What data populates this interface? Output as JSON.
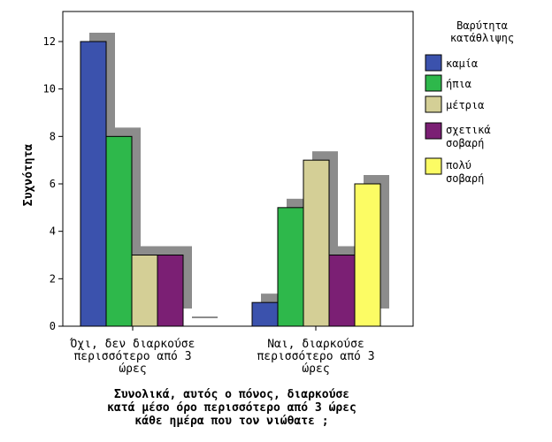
{
  "chart_data": {
    "type": "bar",
    "title": "",
    "ylabel": "Συχνότητα",
    "xlabel": [
      "Συνολικά, αυτός ο πόνος, διαρκούσε",
      "κατά μέσο όρο περισσότερο από 3 ώρες",
      "κάθε ημέρα που τον νιώθατε ;"
    ],
    "ylim": [
      0,
      12.5
    ],
    "yticks": [
      0,
      2,
      4,
      6,
      8,
      10,
      12
    ],
    "categories": [
      [
        "Όχι, δεν διαρκούσε",
        "περισσότερο από 3",
        "ώρες"
      ],
      [
        "Ναι, διαρκούσε",
        "περισσότερο από 3",
        "ώρες"
      ]
    ],
    "legend_title": [
      "Βαρύτητα",
      "κατάθλιψης"
    ],
    "legend_position": "right",
    "grid": false,
    "series": [
      {
        "name": [
          "καμία"
        ],
        "color": "#3b52ad",
        "values": [
          12,
          1
        ]
      },
      {
        "name": [
          "ήπια"
        ],
        "color": "#2eb84b",
        "values": [
          8,
          5
        ]
      },
      {
        "name": [
          "μέτρια"
        ],
        "color": "#d4cf96",
        "values": [
          3,
          7
        ]
      },
      {
        "name": [
          "σχετικά",
          "σοβαρή"
        ],
        "color": "#7b1f74",
        "values": [
          3,
          3
        ]
      },
      {
        "name": [
          "πολύ",
          "σοβαρή"
        ],
        "color": "#fcfc64",
        "values": [
          0,
          6
        ]
      }
    ]
  }
}
